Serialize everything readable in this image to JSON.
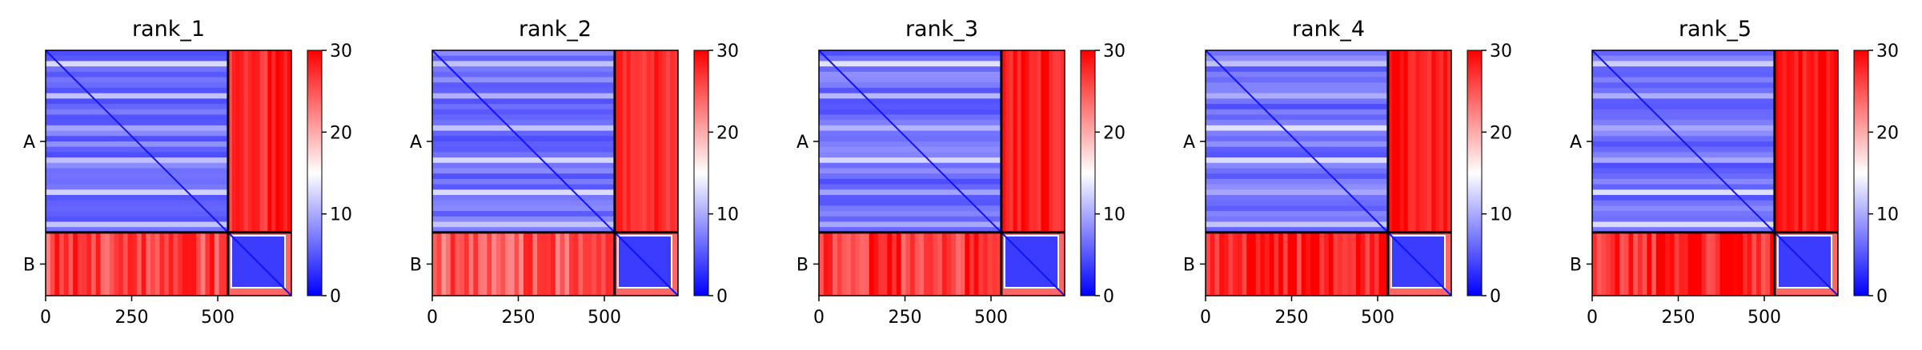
{
  "chart_data": {
    "type": "heatmap",
    "colormap": {
      "name": "bwr",
      "low": "#0000ff",
      "mid": "#ffffff",
      "high": "#ff0000"
    },
    "color_range": [
      0,
      30
    ],
    "colorbar_ticks": [
      "0",
      "10",
      "20",
      "30"
    ],
    "x_range": [
      0,
      714
    ],
    "xticks": [
      0,
      250,
      500
    ],
    "xtick_labels": [
      "0",
      "250",
      "500"
    ],
    "chain_boundary": 530,
    "chains": [
      "A",
      "B"
    ],
    "grid": false,
    "panels": [
      {
        "title": "rank_1",
        "inter_chain_pae_AB": 28,
        "inter_chain_pae_BA": 26,
        "intra_pae_A": 6.5,
        "intra_pae_B": 3.5
      },
      {
        "title": "rank_2",
        "inter_chain_pae_AB": 27,
        "inter_chain_pae_BA": 25,
        "intra_pae_A": 6.5,
        "intra_pae_B": 3.5
      },
      {
        "title": "rank_3",
        "inter_chain_pae_AB": 28.5,
        "inter_chain_pae_BA": 27,
        "intra_pae_A": 6.5,
        "intra_pae_B": 3.5
      },
      {
        "title": "rank_4",
        "inter_chain_pae_AB": 29,
        "inter_chain_pae_BA": 28.5,
        "intra_pae_A": 6.5,
        "intra_pae_B": 3.5
      },
      {
        "title": "rank_5",
        "inter_chain_pae_AB": 29,
        "inter_chain_pae_BA": 28,
        "intra_pae_A": 6.5,
        "intra_pae_B": 3.5
      }
    ]
  }
}
